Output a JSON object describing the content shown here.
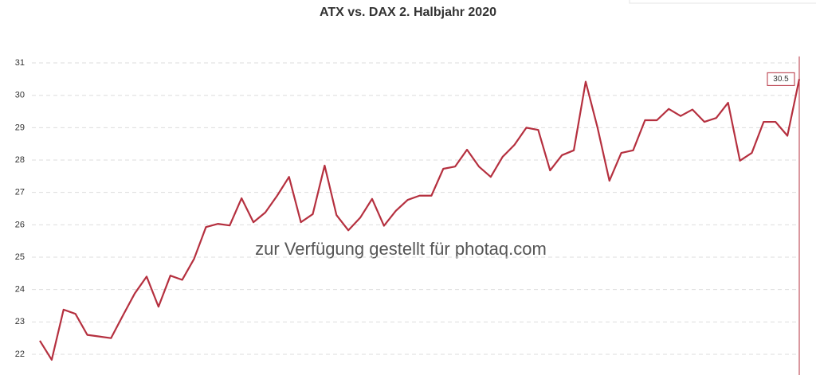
{
  "chart_data": {
    "type": "line",
    "title": "ATX vs. DAX 2. Halbjahr 2020",
    "series": [
      {
        "color": "#b5303f",
        "values": [
          22.42,
          21.83,
          23.38,
          23.25,
          22.6,
          22.55,
          22.5,
          23.2,
          23.88,
          24.4,
          23.47,
          24.43,
          24.3,
          24.95,
          25.93,
          26.03,
          25.98,
          26.82,
          26.08,
          26.38,
          26.9,
          27.48,
          26.08,
          26.33,
          27.83,
          26.3,
          25.83,
          26.22,
          26.8,
          25.97,
          26.43,
          26.77,
          26.9,
          26.9,
          27.73,
          27.8,
          28.32,
          27.8,
          27.48,
          28.1,
          28.47,
          29.0,
          28.93,
          27.68,
          28.15,
          28.3,
          30.42,
          29.0,
          27.36,
          28.22,
          28.3,
          29.23,
          29.23,
          29.58,
          29.36,
          29.56,
          29.18,
          29.3,
          29.77,
          27.98,
          28.22,
          29.18,
          29.18,
          28.75,
          30.5
        ]
      }
    ],
    "annotation": "30.5",
    "watermark": "zur Verfügung gestellt für photaq.com",
    "ylim": [
      21.4,
      31.2
    ],
    "yticks": [
      22,
      23,
      24,
      25,
      26,
      27,
      28,
      29,
      30,
      31
    ],
    "grid": true
  }
}
